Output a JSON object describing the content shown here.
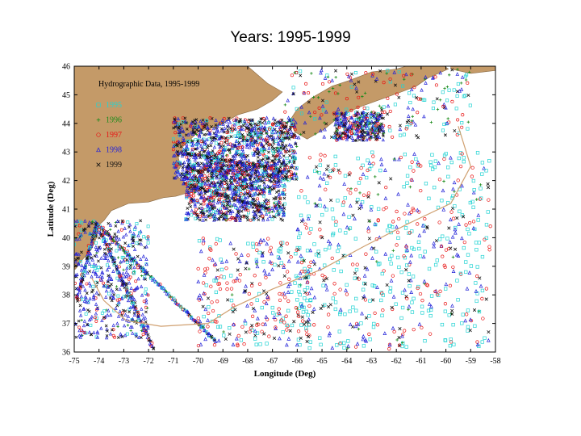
{
  "page": {
    "title": "Years: 1995-1999"
  },
  "map": {
    "legend_title": "Hydrographic Data, 1995-1999",
    "xlabel": "Longitude (Deg)",
    "ylabel": "Latitude (Deg)",
    "xlim": [
      -75,
      -58
    ],
    "ylim": [
      36,
      46
    ],
    "x_ticks": [
      -75,
      -74,
      -73,
      -72,
      -71,
      -70,
      -69,
      -68,
      -67,
      -66,
      -65,
      -64,
      -63,
      -62,
      -61,
      -60,
      -59,
      -58
    ],
    "y_ticks": [
      36,
      37,
      38,
      39,
      40,
      41,
      42,
      43,
      44,
      45,
      46
    ],
    "land_color": "#c49a68",
    "legend": [
      {
        "year": "1995",
        "color": "#22d3d3",
        "marker": "square"
      },
      {
        "year": "1996",
        "color": "#1a8a1a",
        "marker": "plus"
      },
      {
        "year": "1997",
        "color": "#e81414",
        "marker": "circle"
      },
      {
        "year": "1998",
        "color": "#2222d8",
        "marker": "triangle"
      },
      {
        "year": "1999",
        "color": "#111111",
        "marker": "cross"
      }
    ]
  }
}
